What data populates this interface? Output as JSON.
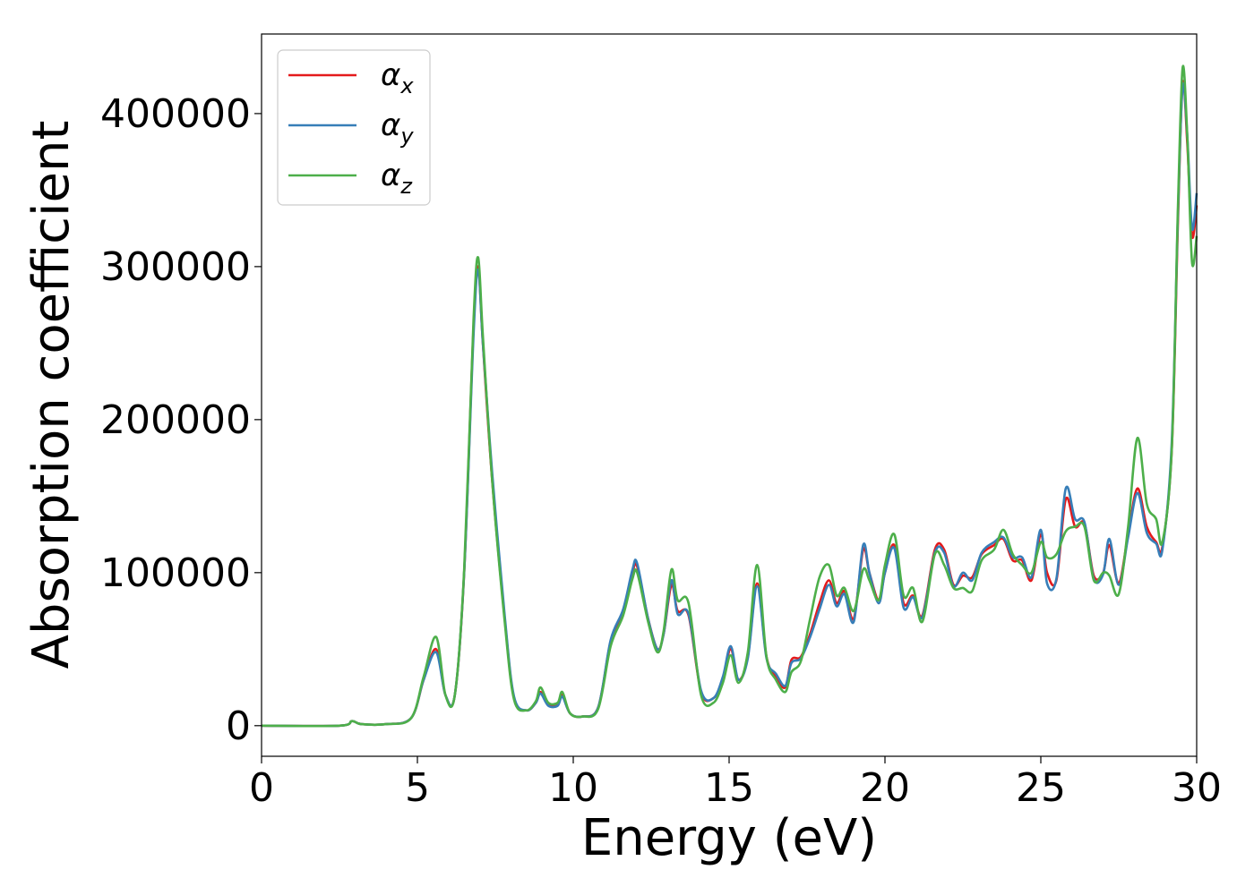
{
  "chart_data": {
    "type": "line",
    "xlabel": "Energy (eV)",
    "ylabel": "Absorption coefficient",
    "xlim": [
      0,
      30
    ],
    "ylim": [
      -20000,
      452000
    ],
    "xticks": [
      0,
      5,
      10,
      15,
      20,
      25,
      30
    ],
    "xtick_labels": [
      "0",
      "5",
      "10",
      "15",
      "20",
      "25",
      "30"
    ],
    "yticks": [
      0,
      100000,
      200000,
      300000,
      400000
    ],
    "ytick_labels": [
      "0",
      "100000",
      "200000",
      "300000",
      "400000"
    ],
    "grid": false,
    "legend_position": "top-left",
    "series": [
      {
        "name": "α_x",
        "legend_symbol": "α",
        "legend_sub": "x",
        "color": "#e41a1c",
        "x": [
          0,
          2.5,
          2.9,
          3.2,
          4.0,
          4.8,
          5.2,
          5.6,
          5.9,
          6.2,
          6.5,
          6.8,
          6.95,
          7.1,
          7.4,
          7.8,
          8.1,
          8.5,
          8.8,
          8.95,
          9.2,
          9.5,
          9.65,
          9.9,
          10.3,
          10.8,
          11.2,
          11.6,
          11.9,
          12.05,
          12.4,
          12.7,
          12.9,
          13.15,
          13.35,
          13.7,
          14.1,
          14.5,
          14.8,
          15.05,
          15.3,
          15.6,
          15.9,
          16.2,
          16.5,
          16.8,
          17.0,
          17.3,
          17.6,
          17.9,
          18.2,
          18.45,
          18.7,
          19.0,
          19.3,
          19.5,
          19.8,
          20.0,
          20.3,
          20.6,
          20.9,
          21.2,
          21.6,
          21.9,
          22.2,
          22.5,
          22.8,
          23.1,
          23.5,
          23.8,
          24.1,
          24.4,
          24.7,
          25.0,
          25.2,
          25.5,
          25.8,
          26.1,
          26.4,
          26.7,
          27.0,
          27.2,
          27.5,
          27.8,
          28.1,
          28.4,
          28.7,
          28.9,
          29.2,
          29.4,
          29.55,
          29.7,
          29.85,
          30.0
        ],
        "y": [
          0,
          0,
          3000,
          1000,
          1000,
          5000,
          30000,
          50000,
          20000,
          20000,
          100000,
          260000,
          300000,
          250000,
          160000,
          70000,
          18000,
          10000,
          15000,
          22000,
          14000,
          14000,
          20000,
          8000,
          6000,
          12000,
          55000,
          75000,
          100000,
          104000,
          70000,
          50000,
          60000,
          92000,
          75000,
          72000,
          22000,
          18000,
          30000,
          50000,
          30000,
          45000,
          93000,
          45000,
          32000,
          25000,
          43000,
          45000,
          60000,
          80000,
          95000,
          80000,
          88000,
          70000,
          115000,
          100000,
          82000,
          100000,
          118000,
          80000,
          85000,
          72000,
          115000,
          115000,
          92000,
          98000,
          97000,
          112000,
          118000,
          122000,
          108000,
          108000,
          95000,
          125000,
          100000,
          95000,
          148000,
          130000,
          132000,
          98000,
          100000,
          118000,
          93000,
          125000,
          155000,
          130000,
          120000,
          117000,
          180000,
          330000,
          420000,
          380000,
          320000,
          340000
        ]
      },
      {
        "name": "α_y",
        "legend_symbol": "α",
        "legend_sub": "y",
        "color": "#377eb8",
        "x": [
          0,
          2.5,
          2.9,
          3.2,
          4.0,
          4.8,
          5.2,
          5.6,
          5.9,
          6.2,
          6.5,
          6.8,
          6.95,
          7.1,
          7.4,
          7.8,
          8.1,
          8.5,
          8.8,
          8.95,
          9.2,
          9.5,
          9.65,
          9.9,
          10.3,
          10.8,
          11.2,
          11.6,
          11.9,
          12.05,
          12.4,
          12.7,
          12.9,
          13.15,
          13.35,
          13.7,
          14.1,
          14.5,
          14.8,
          15.05,
          15.3,
          15.6,
          15.9,
          16.2,
          16.5,
          16.8,
          17.0,
          17.3,
          17.6,
          17.9,
          18.2,
          18.45,
          18.7,
          19.0,
          19.3,
          19.5,
          19.8,
          20.0,
          20.3,
          20.6,
          20.9,
          21.2,
          21.6,
          21.9,
          22.2,
          22.5,
          22.8,
          23.1,
          23.5,
          23.8,
          24.1,
          24.4,
          24.7,
          25.0,
          25.2,
          25.5,
          25.8,
          26.1,
          26.4,
          26.7,
          27.0,
          27.2,
          27.5,
          27.8,
          28.1,
          28.4,
          28.7,
          28.9,
          29.2,
          29.4,
          29.55,
          29.7,
          29.85,
          30.0
        ],
        "y": [
          0,
          0,
          3000,
          1000,
          1000,
          5000,
          30000,
          48000,
          20000,
          20000,
          100000,
          255000,
          298000,
          250000,
          165000,
          72000,
          19000,
          10000,
          15000,
          21000,
          13000,
          13000,
          19000,
          8000,
          6000,
          12000,
          56000,
          76000,
          102000,
          106000,
          70000,
          50000,
          60000,
          95000,
          73000,
          73000,
          23000,
          18000,
          32000,
          52000,
          30000,
          44000,
          91000,
          44000,
          34000,
          26000,
          41000,
          44000,
          58000,
          76000,
          92000,
          78000,
          86000,
          68000,
          118000,
          100000,
          80000,
          100000,
          116000,
          77000,
          84000,
          71000,
          113000,
          113000,
          91000,
          100000,
          95000,
          113000,
          120000,
          123000,
          110000,
          110000,
          97000,
          128000,
          93000,
          96000,
          155000,
          135000,
          133000,
          96000,
          99000,
          122000,
          92000,
          123000,
          152000,
          126000,
          119000,
          115000,
          185000,
          335000,
          418000,
          385000,
          325000,
          348000
        ]
      },
      {
        "name": "α_z",
        "legend_symbol": "α",
        "legend_sub": "z",
        "color": "#4daf4a",
        "x": [
          0,
          2.5,
          2.9,
          3.2,
          4.0,
          4.8,
          5.2,
          5.6,
          5.9,
          6.2,
          6.5,
          6.8,
          6.95,
          7.1,
          7.4,
          7.8,
          8.1,
          8.5,
          8.8,
          8.95,
          9.2,
          9.5,
          9.65,
          9.9,
          10.3,
          10.8,
          11.2,
          11.6,
          11.9,
          12.05,
          12.4,
          12.7,
          12.9,
          13.15,
          13.35,
          13.7,
          14.1,
          14.5,
          14.8,
          15.05,
          15.3,
          15.6,
          15.9,
          16.2,
          16.5,
          16.8,
          17.0,
          17.3,
          17.6,
          17.9,
          18.2,
          18.45,
          18.7,
          19.0,
          19.3,
          19.5,
          19.8,
          20.0,
          20.3,
          20.6,
          20.9,
          21.2,
          21.6,
          21.9,
          22.2,
          22.5,
          22.8,
          23.1,
          23.5,
          23.8,
          24.1,
          24.4,
          24.7,
          25.0,
          25.2,
          25.5,
          25.8,
          26.1,
          26.4,
          26.7,
          27.0,
          27.2,
          27.5,
          27.8,
          28.1,
          28.4,
          28.7,
          28.9,
          29.2,
          29.4,
          29.55,
          29.7,
          29.85,
          30.0
        ],
        "y": [
          0,
          0,
          3000,
          1000,
          1000,
          5000,
          32000,
          58000,
          20000,
          20000,
          102000,
          265000,
          306000,
          255000,
          160000,
          68000,
          17000,
          10000,
          16000,
          25000,
          15000,
          15000,
          22000,
          8000,
          6000,
          11000,
          52000,
          72000,
          96000,
          100000,
          68000,
          48000,
          62000,
          102000,
          82000,
          80000,
          20000,
          15000,
          28000,
          46000,
          28000,
          48000,
          105000,
          45000,
          30000,
          22000,
          35000,
          42000,
          70000,
          97000,
          105000,
          85000,
          90000,
          75000,
          102000,
          95000,
          82000,
          105000,
          125000,
          85000,
          90000,
          68000,
          112000,
          105000,
          90000,
          90000,
          88000,
          108000,
          115000,
          128000,
          112000,
          105000,
          100000,
          120000,
          110000,
          112000,
          127000,
          130000,
          130000,
          95000,
          100000,
          98000,
          86000,
          130000,
          188000,
          145000,
          135000,
          120000,
          180000,
          340000,
          430000,
          385000,
          303000,
          320000
        ]
      }
    ]
  }
}
